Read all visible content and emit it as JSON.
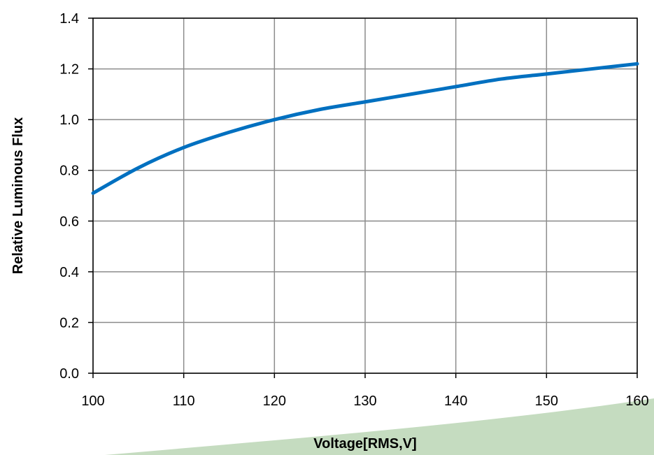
{
  "chart_data": {
    "type": "line",
    "title": "",
    "xlabel": "Voltage[RMS,V]",
    "ylabel": "Relative Luminous Flux",
    "xlim": [
      100,
      160
    ],
    "ylim": [
      0.0,
      1.4
    ],
    "x_ticks": [
      "100",
      "110",
      "120",
      "130",
      "140",
      "150",
      "160"
    ],
    "y_ticks": [
      "0.0",
      "0.2",
      "0.4",
      "0.6",
      "0.8",
      "1.0",
      "1.2",
      "1.4"
    ],
    "grid": true,
    "legend": "none",
    "series": [
      {
        "color": "#0070c0",
        "x": [
          100,
          105,
          110,
          115,
          120,
          125,
          130,
          135,
          140,
          145,
          150,
          155,
          160
        ],
        "y": [
          0.71,
          0.81,
          0.89,
          0.95,
          1.0,
          1.04,
          1.07,
          1.1,
          1.13,
          1.16,
          1.18,
          1.2,
          1.22
        ]
      }
    ]
  },
  "decoration": {
    "ribbon_color": "#c5dcc0"
  }
}
